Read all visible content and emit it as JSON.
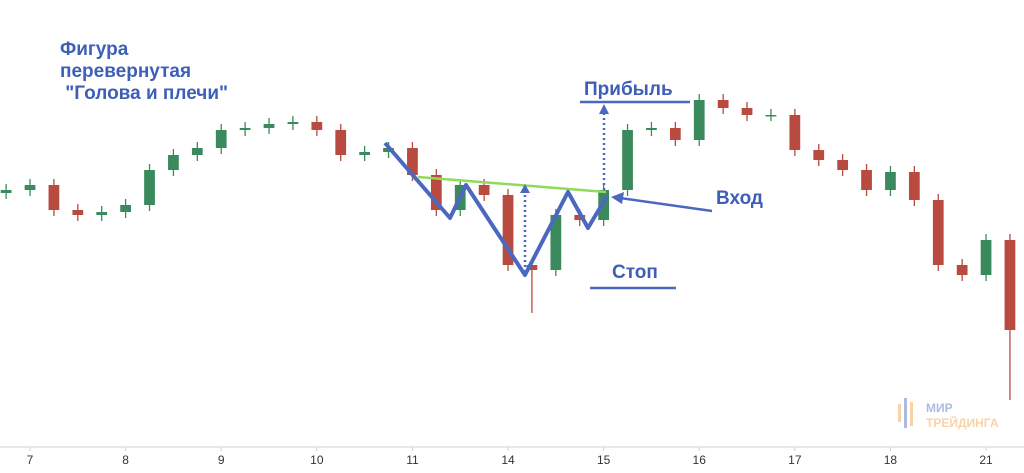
{
  "chart_data": {
    "type": "candlestick",
    "title_lines": [
      "Фигура",
      "перевернутая",
      " \"Голова и плечи\""
    ],
    "annotations": {
      "profit": "Прибыль",
      "entry": "Вход",
      "stop": "Стоп"
    },
    "watermark": [
      "МИР",
      "ТРЕЙДИНГА"
    ],
    "up_color": "#3b8a5e",
    "down_color": "#b84a40",
    "x": [
      -0.25,
      0,
      0.25,
      0.5,
      0.75,
      1,
      1.25,
      1.5,
      1.75,
      2,
      2.25,
      2.5,
      2.75,
      3,
      3.25,
      3.5,
      3.75,
      4,
      4.25,
      4.5,
      4.75,
      5,
      5.25,
      5.5,
      5.75,
      6,
      6.25,
      6.5,
      6.75,
      7,
      7.25,
      7.5,
      7.75,
      8,
      8.25,
      8.5,
      8.75,
      9,
      9.25,
      9.5,
      9.75,
      10,
      10.25
    ],
    "open": [
      280,
      283,
      288,
      263,
      258,
      261,
      268,
      303,
      318,
      325,
      343,
      345,
      349,
      351,
      343,
      318,
      321,
      325,
      298,
      263,
      288,
      278,
      208,
      203,
      258,
      253,
      283,
      343,
      345,
      333,
      373,
      365,
      358,
      358,
      323,
      313,
      303,
      283,
      301,
      273,
      208,
      198,
      233
    ],
    "high": [
      289,
      294,
      294,
      269,
      267,
      274,
      309,
      324,
      331,
      349,
      351,
      355,
      357,
      357,
      349,
      327,
      331,
      331,
      304,
      294,
      294,
      284,
      214,
      264,
      264,
      289,
      349,
      351,
      351,
      379,
      379,
      371,
      364,
      364,
      329,
      319,
      309,
      307,
      307,
      279,
      214,
      239,
      239
    ],
    "low": [
      274,
      277,
      257,
      252,
      252,
      255,
      262,
      297,
      312,
      319,
      337,
      339,
      343,
      337,
      312,
      312,
      315,
      292,
      257,
      257,
      272,
      202,
      160,
      197,
      247,
      247,
      277,
      337,
      327,
      327,
      359,
      352,
      352,
      317,
      307,
      297,
      277,
      277,
      267,
      202,
      192,
      192,
      73
    ],
    "close": [
      283,
      288,
      263,
      258,
      261,
      268,
      303,
      318,
      325,
      343,
      345,
      349,
      351,
      343,
      318,
      321,
      325,
      298,
      263,
      288,
      278,
      208,
      203,
      258,
      253,
      283,
      343,
      345,
      333,
      373,
      365,
      358,
      358,
      323,
      313,
      303,
      283,
      301,
      273,
      208,
      198,
      233,
      143
    ],
    "xlim": [
      -0.314,
      10.397
    ],
    "ylim": [
      28,
      473
    ],
    "xticks": [
      {
        "value": 0,
        "label": "7"
      },
      {
        "value": 1,
        "label": "8"
      },
      {
        "value": 2,
        "label": "9"
      },
      {
        "value": 3,
        "label": "10"
      },
      {
        "value": 4,
        "label": "11"
      },
      {
        "value": 5,
        "label": "14"
      },
      {
        "value": 6,
        "label": "15"
      },
      {
        "value": 7,
        "label": "16"
      },
      {
        "value": 8,
        "label": "17"
      },
      {
        "value": 9,
        "label": "18"
      },
      {
        "value": 10,
        "label": "21"
      }
    ]
  }
}
